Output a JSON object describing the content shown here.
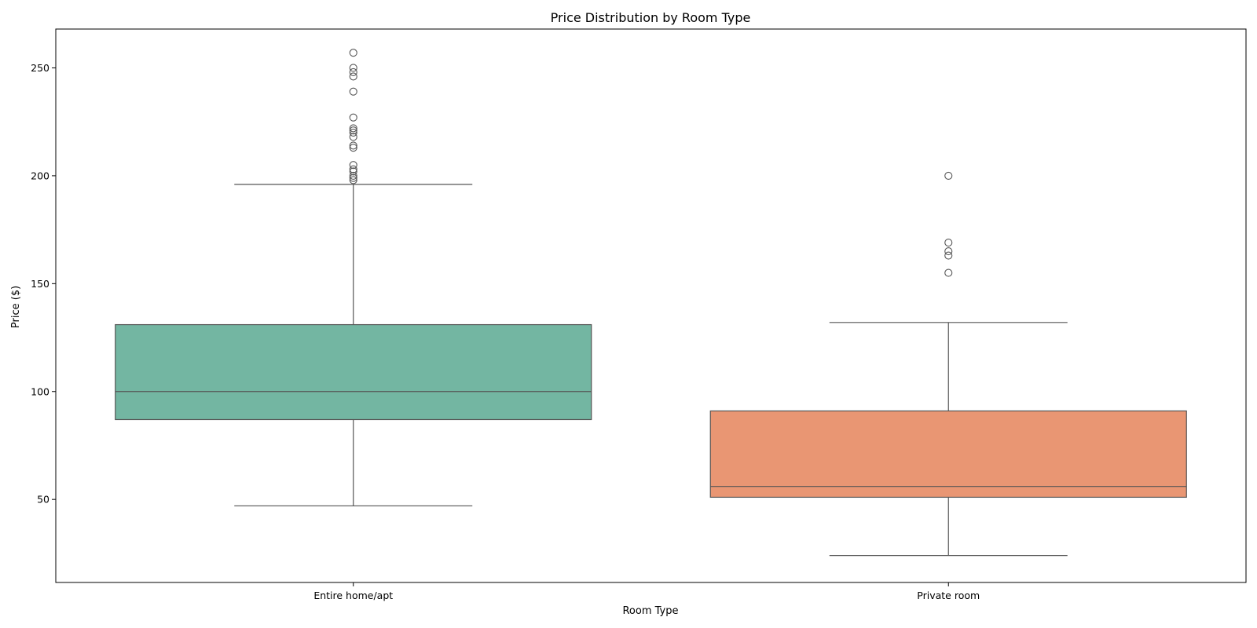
{
  "chart_data": {
    "type": "box",
    "title": "Price Distribution by Room Type",
    "xlabel": "Room Type",
    "ylabel": "Price ($)",
    "ylim": [
      11.5,
      268
    ],
    "yticks": [
      50,
      100,
      150,
      200,
      250
    ],
    "grid": false,
    "categories": [
      "Entire home/apt",
      "Private room"
    ],
    "series": [
      {
        "category": "Entire home/apt",
        "color": "#73b6a2",
        "whisker_low": 47,
        "q1": 87,
        "median": 100,
        "q3": 131,
        "whisker_high": 196,
        "outliers": [
          198,
          199,
          200,
          202,
          203,
          205,
          213,
          214,
          218,
          220,
          221,
          222,
          227,
          239,
          246,
          248,
          250,
          257
        ]
      },
      {
        "category": "Private room",
        "color": "#e99673",
        "whisker_low": 24,
        "q1": 51,
        "median": 56,
        "q3": 91,
        "whisker_high": 132,
        "outliers": [
          155,
          163,
          165,
          169,
          200
        ]
      }
    ]
  }
}
